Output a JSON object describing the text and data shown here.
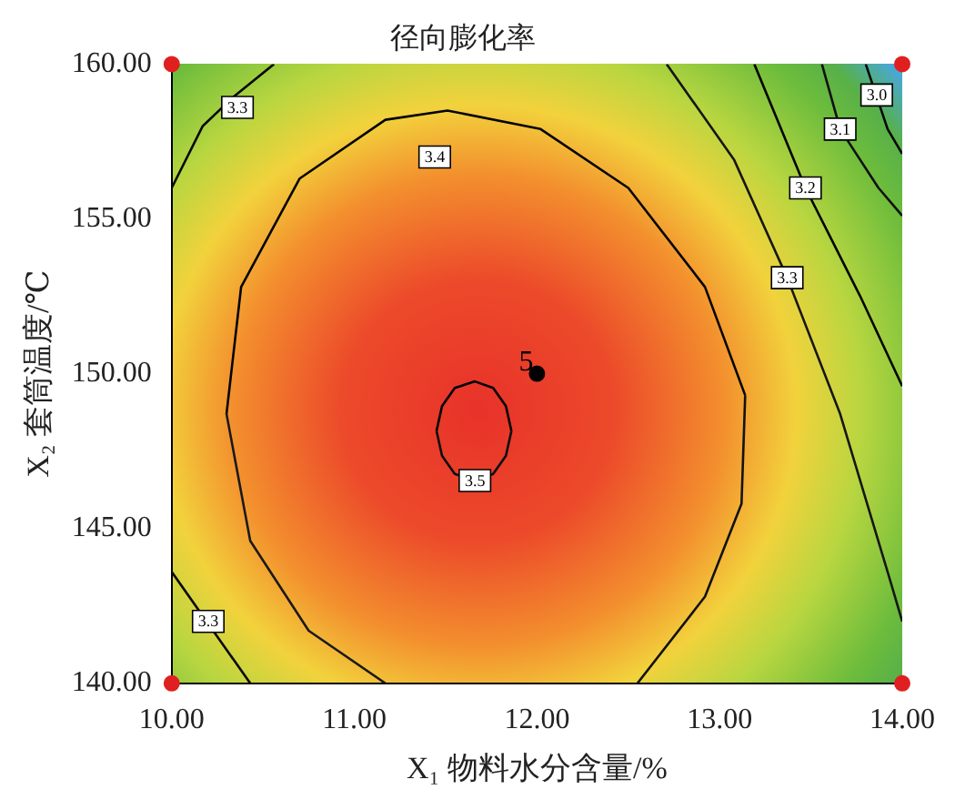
{
  "chart_data": {
    "type": "line",
    "title": "径向膨化率",
    "xlabel": "X₁ 物料水分含量/%",
    "ylabel": "X₂ 套筒温度/℃",
    "xlim": [
      10,
      14
    ],
    "ylim": [
      140,
      160
    ],
    "xticks": [
      {
        "value": 10,
        "label": "10.00"
      },
      {
        "value": 11,
        "label": "11.00"
      },
      {
        "value": 12,
        "label": "12.00"
      },
      {
        "value": 13,
        "label": "13.00"
      },
      {
        "value": 14,
        "label": "14.00"
      }
    ],
    "yticks": [
      {
        "value": 140,
        "label": "140.00"
      },
      {
        "value": 145,
        "label": "145.00"
      },
      {
        "value": 150,
        "label": "150.00"
      },
      {
        "value": 155,
        "label": "155.00"
      },
      {
        "value": 160,
        "label": "160.00"
      }
    ],
    "grid": false,
    "legend": false,
    "line_style": "solid",
    "series": [
      {
        "color": "#000000",
        "x": [
          11.45,
          11.48,
          11.55,
          11.66,
          11.76,
          11.83,
          11.86
        ],
        "values": [
          148.15,
          148.95,
          149.54,
          149.75,
          149.54,
          148.95,
          148.15
        ]
      },
      {
        "color": "#0e0e0e",
        "x": [
          11.45,
          11.48,
          11.55,
          11.66,
          11.76,
          11.83,
          11.86
        ],
        "values": [
          148.15,
          147.35,
          146.76,
          146.55,
          146.76,
          147.35,
          148.15
        ]
      },
      {
        "color": "#1a1a1a",
        "x": [
          10.3,
          10.43,
          10.75,
          11.17
        ],
        "values": [
          148.7,
          144.6,
          141.7,
          140
        ]
      },
      {
        "color": "#040404",
        "x": [
          10.3,
          10.38,
          10.7,
          11.17,
          11.51,
          12.02,
          12.5,
          12.92,
          13.14
        ],
        "values": [
          148.7,
          152.8,
          156.3,
          158.2,
          158.5,
          157.9,
          156,
          152.8,
          149.3
        ]
      },
      {
        "color": "#121212",
        "x": [
          12.55,
          12.92,
          13.12,
          13.14
        ],
        "values": [
          140,
          142.8,
          145.8,
          149.3
        ]
      },
      {
        "color": "#080808",
        "x": [
          10,
          10.17,
          10.33,
          10.56
        ],
        "values": [
          156,
          158,
          158.9,
          160
        ]
      },
      {
        "color": "#161616",
        "x": [
          12.71,
          13.08,
          13.37,
          13.66,
          13.93,
          14
        ],
        "values": [
          160,
          156.9,
          153.1,
          148.7,
          143.4,
          142
        ]
      },
      {
        "color": "#0a0a0a",
        "x": [
          10,
          10.43
        ],
        "values": [
          143.6,
          140
        ]
      },
      {
        "color": "#020202",
        "x": [
          13.19,
          13.47,
          13.77,
          14
        ],
        "values": [
          160,
          156,
          152.5,
          149.6
        ]
      },
      {
        "color": "#101010",
        "x": [
          13.56,
          13.66,
          13.87,
          14
        ],
        "values": [
          160,
          157.9,
          156,
          155.1
        ]
      },
      {
        "color": "#060606",
        "x": [
          13.8,
          13.92,
          14
        ],
        "values": [
          160,
          157.9,
          157.1
        ]
      },
      {
        "type": "scatter",
        "marker": "circle",
        "colors": [
          "#e02020",
          "#e02020",
          "#e02020",
          "#e02020",
          "#000000"
        ],
        "x": [
          10,
          10,
          14,
          14,
          12
        ],
        "values": [
          140,
          160,
          140,
          160,
          150
        ]
      }
    ],
    "annotations": [
      {
        "text": "3.5",
        "x": 11.66,
        "y": 146.55
      },
      {
        "text": "3.4",
        "x": 11.44,
        "y": 157.0
      },
      {
        "text": "3.3",
        "x": 10.36,
        "y": 158.6
      },
      {
        "text": "3.3",
        "x": 13.37,
        "y": 153.1
      },
      {
        "text": "3.3",
        "x": 10.2,
        "y": 142.0
      },
      {
        "text": "3.2",
        "x": 13.47,
        "y": 156.0
      },
      {
        "text": "3.1",
        "x": 13.66,
        "y": 157.9
      },
      {
        "text": "3.0",
        "x": 13.86,
        "y": 159.0
      },
      {
        "text": "5",
        "x": 12,
        "y": 150
      }
    ]
  }
}
